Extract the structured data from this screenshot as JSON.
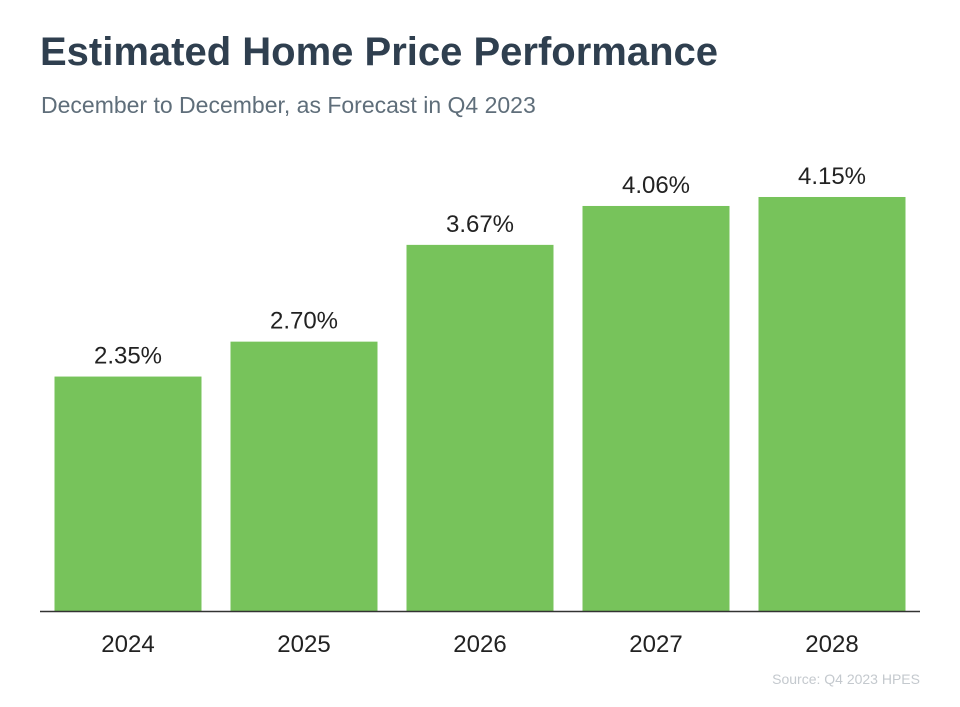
{
  "header": {
    "title": "Estimated Home Price Performance",
    "subtitle": "December to December, as Forecast in Q4 2023"
  },
  "footer": {
    "source": "Source: Q4 2023 HPES"
  },
  "colors": {
    "bar": "#77c35b",
    "axis": "#333333",
    "label": "#222222"
  },
  "chart_data": {
    "type": "bar",
    "categories": [
      "2024",
      "2025",
      "2026",
      "2027",
      "2028"
    ],
    "values": [
      2.35,
      2.7,
      3.67,
      4.06,
      4.15
    ],
    "data_labels": [
      "2.35%",
      "2.70%",
      "3.67%",
      "4.06%",
      "4.15%"
    ],
    "ylim": [
      0,
      4.2
    ],
    "grid": false,
    "legend": "none"
  }
}
